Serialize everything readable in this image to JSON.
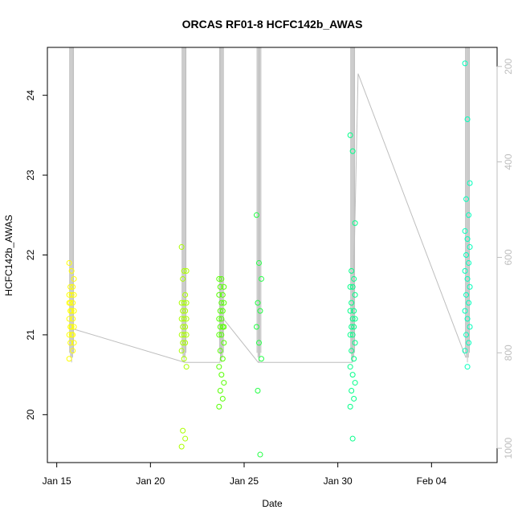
{
  "chart_data": {
    "type": "scatter",
    "title": "ORCAS RF01-8 HCFC142b_AWAS",
    "xlabel": "Date",
    "ylabel": "HCFC142b_AWAS",
    "xlim": [
      "2016-01-14T12:00",
      "2016-02-07T12:00"
    ],
    "ylim": [
      19.4,
      24.6
    ],
    "y2lim": [
      1030,
      160
    ],
    "x_ticks": [
      {
        "date": "2016-01-15T00:00",
        "label": "Jan 15"
      },
      {
        "date": "2016-01-20T00:00",
        "label": "Jan 20"
      },
      {
        "date": "2016-01-25T00:00",
        "label": "Jan 25"
      },
      {
        "date": "2016-01-30T00:00",
        "label": "Jan 30"
      },
      {
        "date": "2016-02-04T00:00",
        "label": "Feb 04"
      }
    ],
    "y_ticks": [
      20,
      21,
      22,
      23,
      24
    ],
    "y2_ticks": [
      200,
      400,
      600,
      800,
      1000
    ],
    "right_axis_color": "#bebebe",
    "grid": false,
    "flights": [
      {
        "time": "2016-01-15T19:00",
        "color": "#ffff00",
        "pressure_min": 200,
        "pressure_max": 820,
        "values": [
          21.9,
          21.8,
          21.7,
          21.6,
          21.6,
          21.5,
          21.5,
          21.5,
          21.4,
          21.4,
          21.4,
          21.3,
          21.3,
          21.3,
          21.2,
          21.2,
          21.1,
          21.1,
          21.1,
          21.0,
          21.0,
          21.0,
          20.9,
          20.9,
          20.8,
          20.7
        ]
      },
      {
        "time": "2016-01-21T19:00",
        "color": "#aaff00",
        "pressure_min": 200,
        "pressure_max": 820,
        "values": [
          22.1,
          21.8,
          21.8,
          21.7,
          21.5,
          21.4,
          21.4,
          21.4,
          21.3,
          21.3,
          21.2,
          21.2,
          21.2,
          21.1,
          21.1,
          21.0,
          21.0,
          21.0,
          20.9,
          20.9,
          20.8,
          20.7,
          20.6,
          19.8,
          19.7,
          19.6
        ]
      },
      {
        "time": "2016-01-23T19:00",
        "color": "#55ff00",
        "pressure_min": 200,
        "pressure_max": 820,
        "values": [
          21.7,
          21.7,
          21.6,
          21.6,
          21.5,
          21.5,
          21.4,
          21.4,
          21.3,
          21.3,
          21.2,
          21.2,
          21.1,
          21.1,
          21.1,
          21.0,
          21.0,
          20.9,
          20.8,
          20.7,
          20.6,
          20.5,
          20.4,
          20.3,
          20.2,
          20.1
        ]
      },
      {
        "time": "2016-01-25T19:00",
        "color": "#22ff44",
        "pressure_min": 200,
        "pressure_max": 820,
        "values": [
          22.5,
          21.9,
          21.7,
          21.4,
          21.3,
          21.1,
          20.9,
          20.7,
          20.3,
          19.5
        ]
      },
      {
        "time": "2016-01-30T19:00",
        "color": "#00ff88",
        "pressure_min": 200,
        "pressure_max": 820,
        "values": [
          23.5,
          23.3,
          22.4,
          21.8,
          21.7,
          21.6,
          21.6,
          21.5,
          21.4,
          21.3,
          21.3,
          21.2,
          21.2,
          21.1,
          21.1,
          21.0,
          21.0,
          20.9,
          20.8,
          20.7,
          20.6,
          20.5,
          20.4,
          20.3,
          20.2,
          20.1,
          19.7
        ]
      },
      {
        "time": "2016-02-05T22:00",
        "color": "#00ffbb",
        "pressure_min": 200,
        "pressure_max": 820,
        "values": [
          24.4,
          23.7,
          22.9,
          22.7,
          22.5,
          22.3,
          22.2,
          22.1,
          22.0,
          21.9,
          21.8,
          21.7,
          21.6,
          21.5,
          21.4,
          21.3,
          21.2,
          21.1,
          21.0,
          20.9,
          20.8,
          20.6
        ]
      }
    ],
    "connector": [
      [
        "2016-01-15T21:00",
        750
      ],
      [
        "2016-01-21T20:00",
        820
      ],
      [
        "2016-01-23T17:00",
        820
      ],
      [
        "2016-01-23T22:00",
        730
      ],
      [
        "2016-01-25T18:00",
        820
      ],
      [
        "2016-01-30T18:00",
        820
      ],
      [
        "2016-01-31T02:00",
        215
      ],
      [
        "2016-02-05T20:00",
        810
      ]
    ]
  }
}
